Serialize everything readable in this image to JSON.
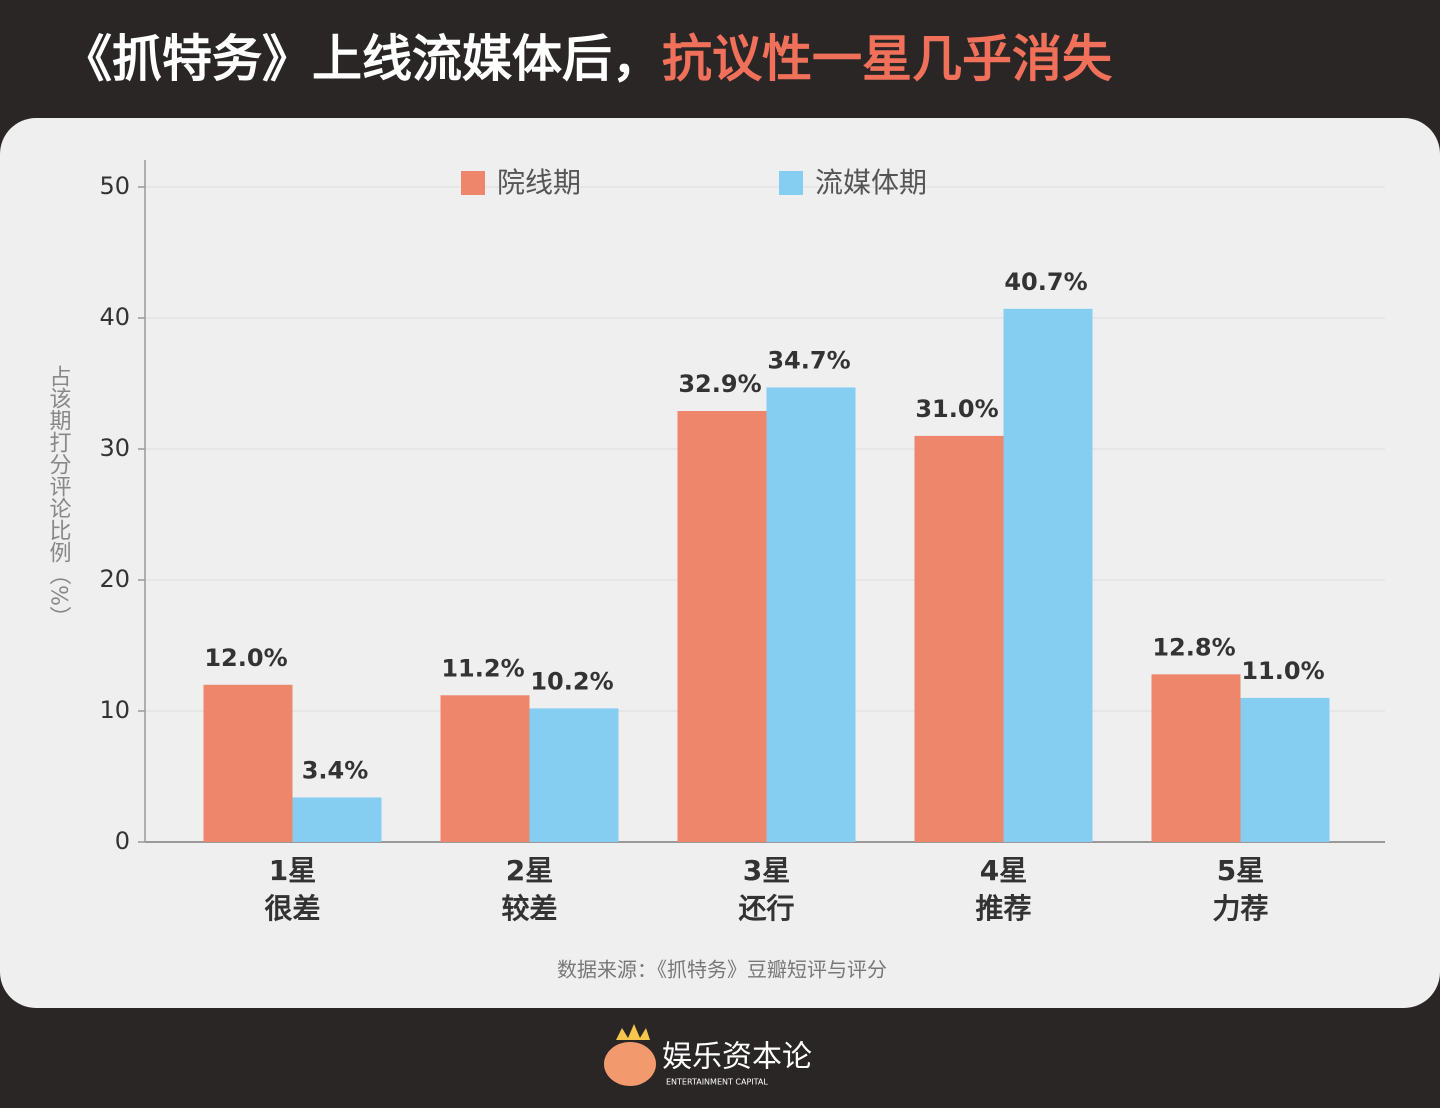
{
  "header": {
    "title": "《抓特务》上线流媒体后，",
    "title_highlight": "抗议性一星几乎消失"
  },
  "chart_data": {
    "type": "bar",
    "categories": [
      [
        "1星",
        "很差"
      ],
      [
        "2星",
        "较差"
      ],
      [
        "3星",
        "还行"
      ],
      [
        "4星",
        "推荐"
      ],
      [
        "5星",
        "力荐"
      ]
    ],
    "series": [
      {
        "name": "院线期",
        "color": "#ee866c",
        "values": [
          12.0,
          11.2,
          32.9,
          31.0,
          12.8
        ],
        "value_labels": [
          "12.0%",
          "11.2%",
          "32.9%",
          "31.0%",
          "12.8%"
        ]
      },
      {
        "name": "流媒体期",
        "color": "#86cdf2",
        "values": [
          3.4,
          10.2,
          34.7,
          40.7,
          11.0
        ],
        "value_labels": [
          "3.4%",
          "10.2%",
          "34.7%",
          "40.7%",
          "11.0%"
        ]
      }
    ],
    "y_label": "占该期打分评论比例（%）",
    "ylim": [
      0,
      50
    ],
    "yticks": [
      0,
      10,
      20,
      30,
      40,
      50
    ],
    "grid": true,
    "legend": "top",
    "source": "数据来源：《抓特务》豆瓣短评与评分"
  },
  "footer": {
    "brand": "娱乐资本论",
    "brand_en": "ENTERTAINMENT CAPITAL"
  }
}
